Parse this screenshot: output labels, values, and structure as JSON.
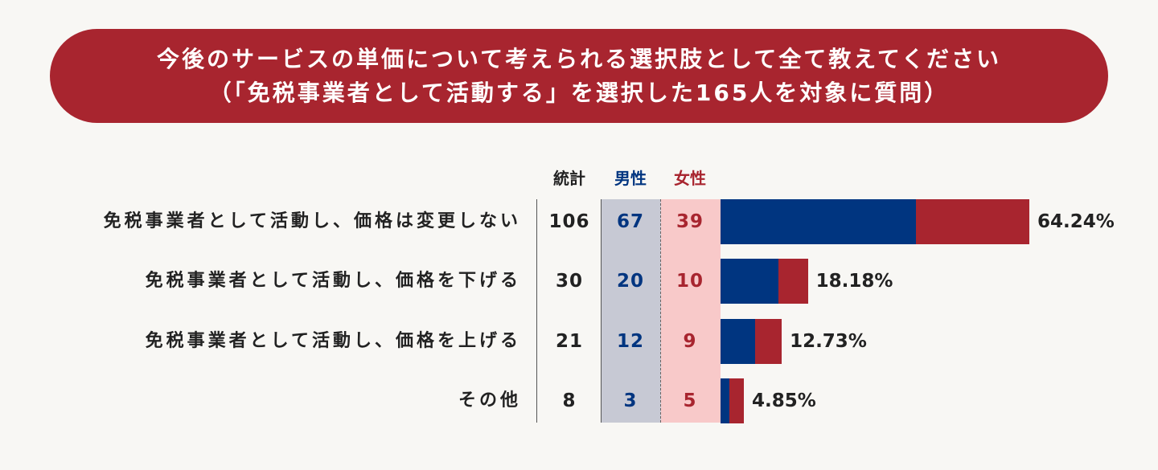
{
  "header": {
    "title_line1": "今後のサービスの単価について考えられる選択肢として全て教えてください",
    "title_line2": "（「免税事業者として活動する」を選択した165人を対象に質問）"
  },
  "columns": {
    "total": "統計",
    "male": "男性",
    "female": "女性"
  },
  "colors": {
    "title_bg": "#a8252f",
    "male": "#003580",
    "female": "#a8252f",
    "male_band": "#c7c9d4",
    "female_band": "#f8c9c9"
  },
  "chart_data": {
    "type": "bar",
    "orientation": "horizontal",
    "stacked": true,
    "categories": [
      "免税事業者として活動し、価格は変更しない",
      "免税事業者として活動し、価格を下げる",
      "免税事業者として活動し、価格を上げる",
      "その他"
    ],
    "totals": [
      106,
      30,
      21,
      8
    ],
    "percent_labels": [
      "64.24%",
      "18.18%",
      "12.73%",
      "4.85%"
    ],
    "series": [
      {
        "name": "男性",
        "values": [
          67,
          20,
          12,
          3
        ]
      },
      {
        "name": "女性",
        "values": [
          39,
          10,
          9,
          5
        ]
      }
    ]
  }
}
